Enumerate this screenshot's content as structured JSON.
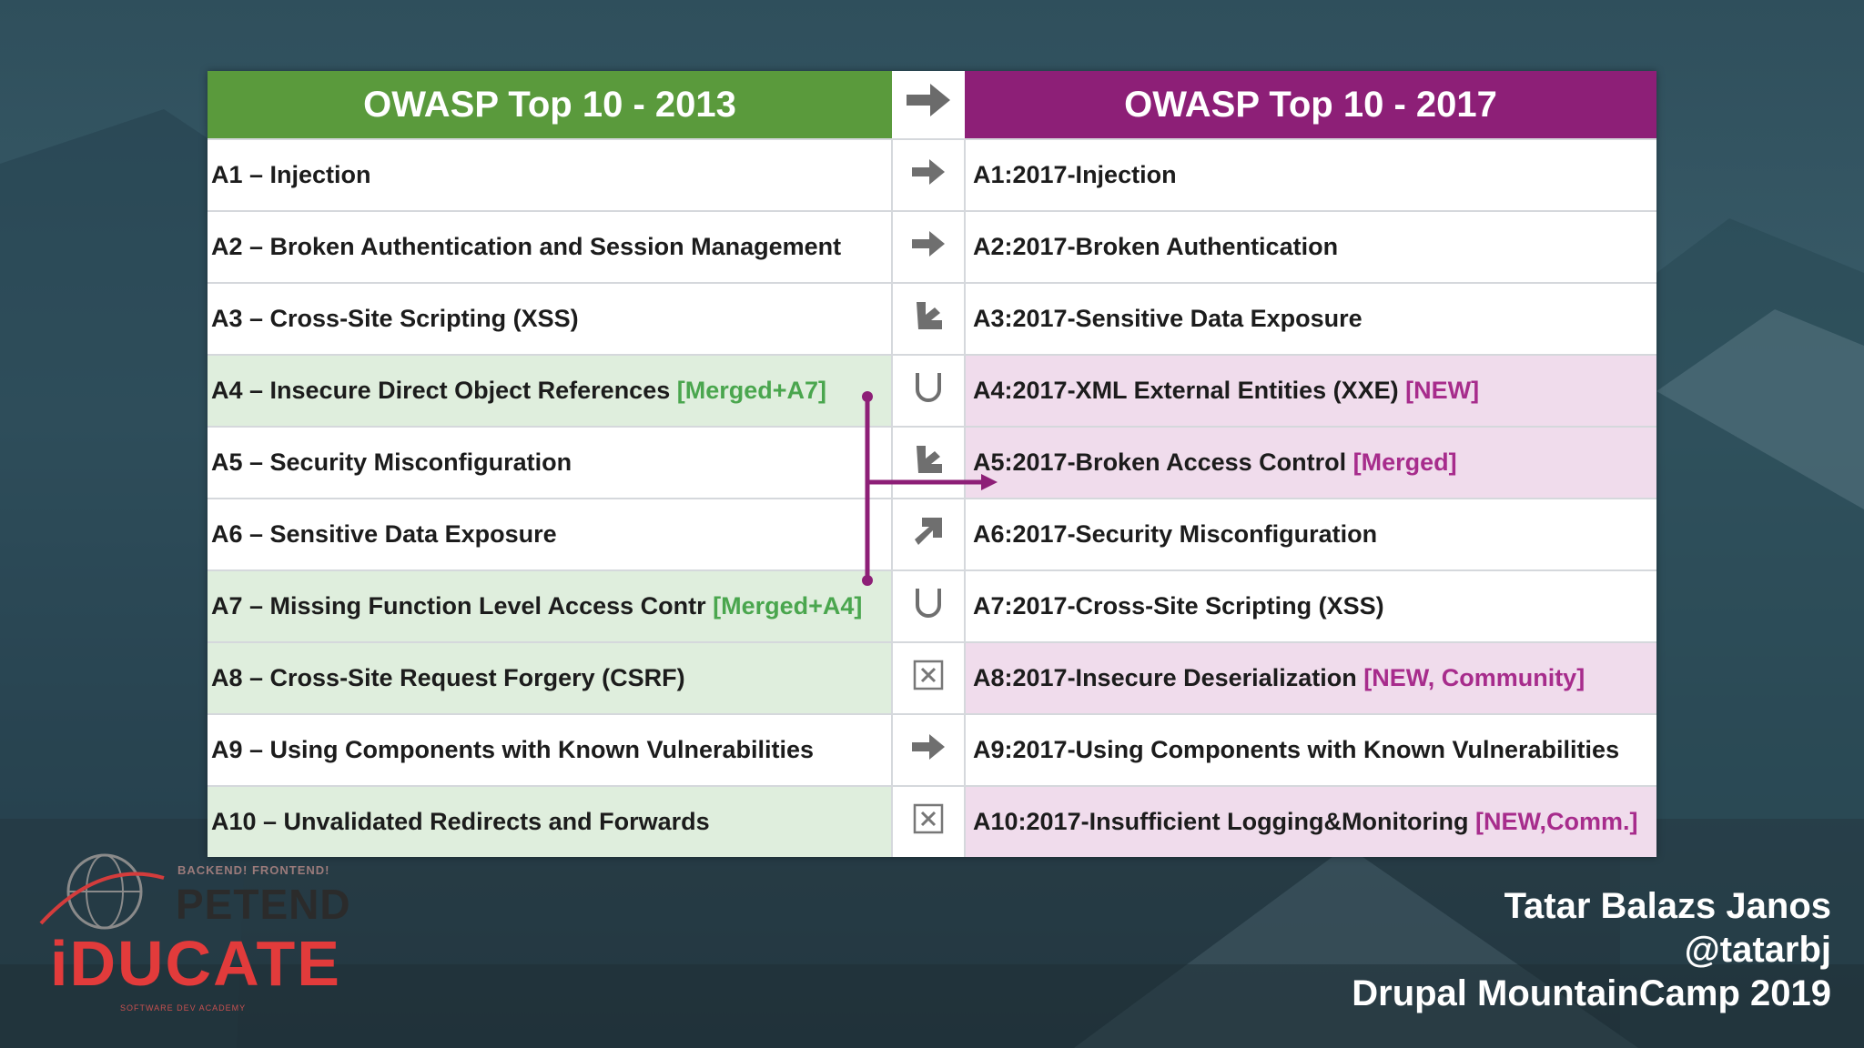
{
  "header": {
    "left_title": "OWASP Top 10 - 2013",
    "right_title": "OWASP Top 10 - 2017",
    "arrow_icon": "right-arrow-icon"
  },
  "rows": [
    {
      "left": "A1 – Injection",
      "left_tag": "",
      "symbol": "arrow-right",
      "right": "A1:2017-Injection",
      "right_tag": ""
    },
    {
      "left": "A2 – Broken Authentication and Session Management",
      "left_tag": "",
      "symbol": "arrow-right",
      "right": "A2:2017-Broken Authentication",
      "right_tag": ""
    },
    {
      "left": "A3 – Cross-Site Scripting (XSS)",
      "left_tag": "",
      "symbol": "arrow-down",
      "right": "A3:2017-Sensitive Data Exposure",
      "right_tag": ""
    },
    {
      "left": "A4 – Insecure Direct Object References ",
      "left_tag": "[Merged+A7]",
      "symbol": "union",
      "right": "A4:2017-XML External Entities (XXE) ",
      "right_tag": "[NEW]"
    },
    {
      "left": "A5 – Security Misconfiguration",
      "left_tag": "",
      "symbol": "arrow-down",
      "right": "A5:2017-Broken Access Control ",
      "right_tag": "[Merged]"
    },
    {
      "left": "A6 – Sensitive Data Exposure",
      "left_tag": "",
      "symbol": "arrow-up",
      "right": "A6:2017-Security Misconfiguration",
      "right_tag": ""
    },
    {
      "left": "A7 – Missing Function Level Access Contr ",
      "left_tag": "[Merged+A4]",
      "symbol": "union",
      "right": "A7:2017-Cross-Site Scripting (XSS)",
      "right_tag": ""
    },
    {
      "left": "A8 – Cross-Site Request Forgery (CSRF)",
      "left_tag": "",
      "symbol": "removed",
      "right": "A8:2017-Insecure Deserialization ",
      "right_tag": "[NEW, Community]"
    },
    {
      "left": "A9 – Using Components with Known Vulnerabilities",
      "left_tag": "",
      "symbol": "arrow-right",
      "right": "A9:2017-Using Components with Known Vulnerabilities",
      "right_tag": ""
    },
    {
      "left": "A10 – Unvalidated Redirects and Forwards",
      "left_tag": "",
      "symbol": "removed",
      "right": "A10:2017-Insufficient Logging&Monitoring ",
      "right_tag": "[NEW,Comm.]"
    }
  ],
  "highlight": {
    "left_rows": [
      3,
      6,
      7,
      9
    ],
    "right_rows": [
      3,
      4,
      7,
      9
    ]
  },
  "colors": {
    "green_header": "#5a9a3c",
    "purple_header": "#8d1f77",
    "merge_line": "#8d1f77"
  },
  "logo": {
    "small_text": "BACKEND! FRONTEND!",
    "brand_top": "PETEND",
    "brand_main": "iDUCATE",
    "brand_sub": "SOFTWARE DEV ACADEMY"
  },
  "credits": {
    "name": "Tatar Balazs Janos",
    "handle": "@tatarbj",
    "event": "Drupal MountainCamp 2019"
  }
}
